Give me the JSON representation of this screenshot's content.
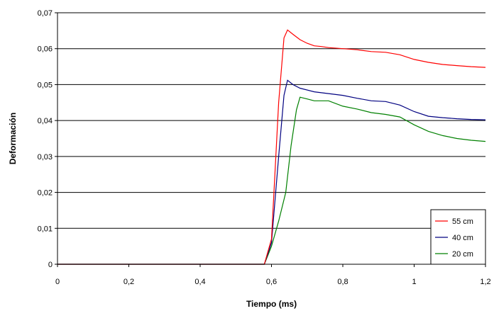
{
  "chart_data": {
    "type": "line",
    "title": "",
    "xlabel": "Tiempo (ms)",
    "ylabel": "Deformación",
    "xlim": [
      0,
      1.2
    ],
    "ylim": [
      0,
      0.07
    ],
    "x_ticks": [
      "0",
      "0,2",
      "0,4",
      "0,6",
      "0,8",
      "1",
      "1,2"
    ],
    "x_tick_values": [
      0,
      0.2,
      0.4,
      0.6,
      0.8,
      1.0,
      1.2
    ],
    "y_ticks": [
      "0",
      "0,01",
      "0,02",
      "0,03",
      "0,04",
      "0,05",
      "0,06",
      "0,07"
    ],
    "y_tick_values": [
      0,
      0.01,
      0.02,
      0.03,
      0.04,
      0.05,
      0.06,
      0.07
    ],
    "grid": "horizontal",
    "legend_position": "bottom-right",
    "series": [
      {
        "name": "55 cm",
        "color": "#ff0000",
        "points": [
          [
            0,
            0
          ],
          [
            0.58,
            0
          ],
          [
            0.6,
            0.007
          ],
          [
            0.62,
            0.045
          ],
          [
            0.635,
            0.063
          ],
          [
            0.645,
            0.0652
          ],
          [
            0.66,
            0.064
          ],
          [
            0.68,
            0.0625
          ],
          [
            0.7,
            0.0615
          ],
          [
            0.72,
            0.0608
          ],
          [
            0.74,
            0.0606
          ],
          [
            0.76,
            0.0603
          ],
          [
            0.8,
            0.06
          ],
          [
            0.84,
            0.0597
          ],
          [
            0.88,
            0.0592
          ],
          [
            0.92,
            0.059
          ],
          [
            0.96,
            0.0583
          ],
          [
            1.0,
            0.057
          ],
          [
            1.04,
            0.0562
          ],
          [
            1.08,
            0.0556
          ],
          [
            1.12,
            0.0553
          ],
          [
            1.16,
            0.055
          ],
          [
            1.2,
            0.0548
          ]
        ]
      },
      {
        "name": "40 cm",
        "color": "#000080",
        "points": [
          [
            0,
            0
          ],
          [
            0.58,
            0
          ],
          [
            0.6,
            0.006
          ],
          [
            0.62,
            0.03
          ],
          [
            0.635,
            0.047
          ],
          [
            0.645,
            0.0512
          ],
          [
            0.66,
            0.05
          ],
          [
            0.68,
            0.049
          ],
          [
            0.72,
            0.048
          ],
          [
            0.76,
            0.0475
          ],
          [
            0.8,
            0.047
          ],
          [
            0.84,
            0.0462
          ],
          [
            0.88,
            0.0455
          ],
          [
            0.92,
            0.0453
          ],
          [
            0.96,
            0.0443
          ],
          [
            1.0,
            0.0425
          ],
          [
            1.04,
            0.0412
          ],
          [
            1.08,
            0.0408
          ],
          [
            1.12,
            0.0405
          ],
          [
            1.16,
            0.0403
          ],
          [
            1.2,
            0.0402
          ]
        ]
      },
      {
        "name": "20 cm",
        "color": "#008000",
        "points": [
          [
            0,
            0
          ],
          [
            0.58,
            0
          ],
          [
            0.6,
            0.005
          ],
          [
            0.62,
            0.012
          ],
          [
            0.64,
            0.02
          ],
          [
            0.655,
            0.033
          ],
          [
            0.67,
            0.043
          ],
          [
            0.68,
            0.0465
          ],
          [
            0.7,
            0.046
          ],
          [
            0.72,
            0.0455
          ],
          [
            0.76,
            0.0455
          ],
          [
            0.8,
            0.044
          ],
          [
            0.84,
            0.0432
          ],
          [
            0.88,
            0.0422
          ],
          [
            0.92,
            0.0417
          ],
          [
            0.96,
            0.041
          ],
          [
            1.0,
            0.0388
          ],
          [
            1.04,
            0.037
          ],
          [
            1.08,
            0.0358
          ],
          [
            1.12,
            0.035
          ],
          [
            1.16,
            0.0345
          ],
          [
            1.2,
            0.0342
          ]
        ]
      }
    ]
  }
}
